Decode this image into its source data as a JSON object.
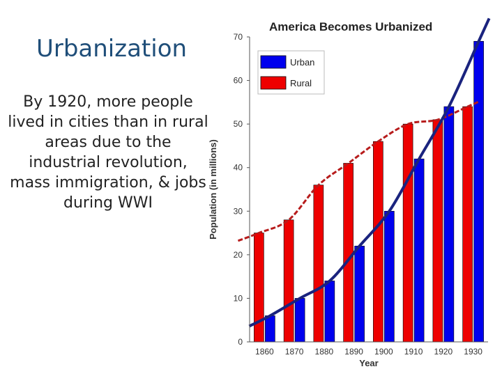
{
  "slide": {
    "title": "Urbanization",
    "body": "By 1920, more people lived in cities than in rural areas due to the industrial revolution, mass immigration, & jobs during WWI"
  },
  "colors": {
    "title": "#1F4E79",
    "urban": "#0000EE",
    "rural": "#EE0000",
    "urban_trend": "#1A237E",
    "rural_trend": "#B71C1C"
  },
  "chart_data": {
    "type": "bar",
    "title": "America Becomes Urbanized",
    "xlabel": "Year",
    "ylabel": "Population (in millions)",
    "categories": [
      "1860",
      "1870",
      "1880",
      "1890",
      "1900",
      "1910",
      "1920",
      "1930"
    ],
    "series": [
      {
        "name": "Urban",
        "values": [
          6,
          10,
          14,
          22,
          30,
          42,
          54,
          69
        ]
      },
      {
        "name": "Rural",
        "values": [
          25,
          28,
          36,
          41,
          46,
          50,
          51,
          54
        ]
      }
    ],
    "ylim": [
      0,
      70
    ],
    "yticks": [
      "0",
      "10",
      "20",
      "30",
      "40",
      "50",
      "60",
      "70"
    ],
    "legend_position": "top-left",
    "grid": false
  }
}
